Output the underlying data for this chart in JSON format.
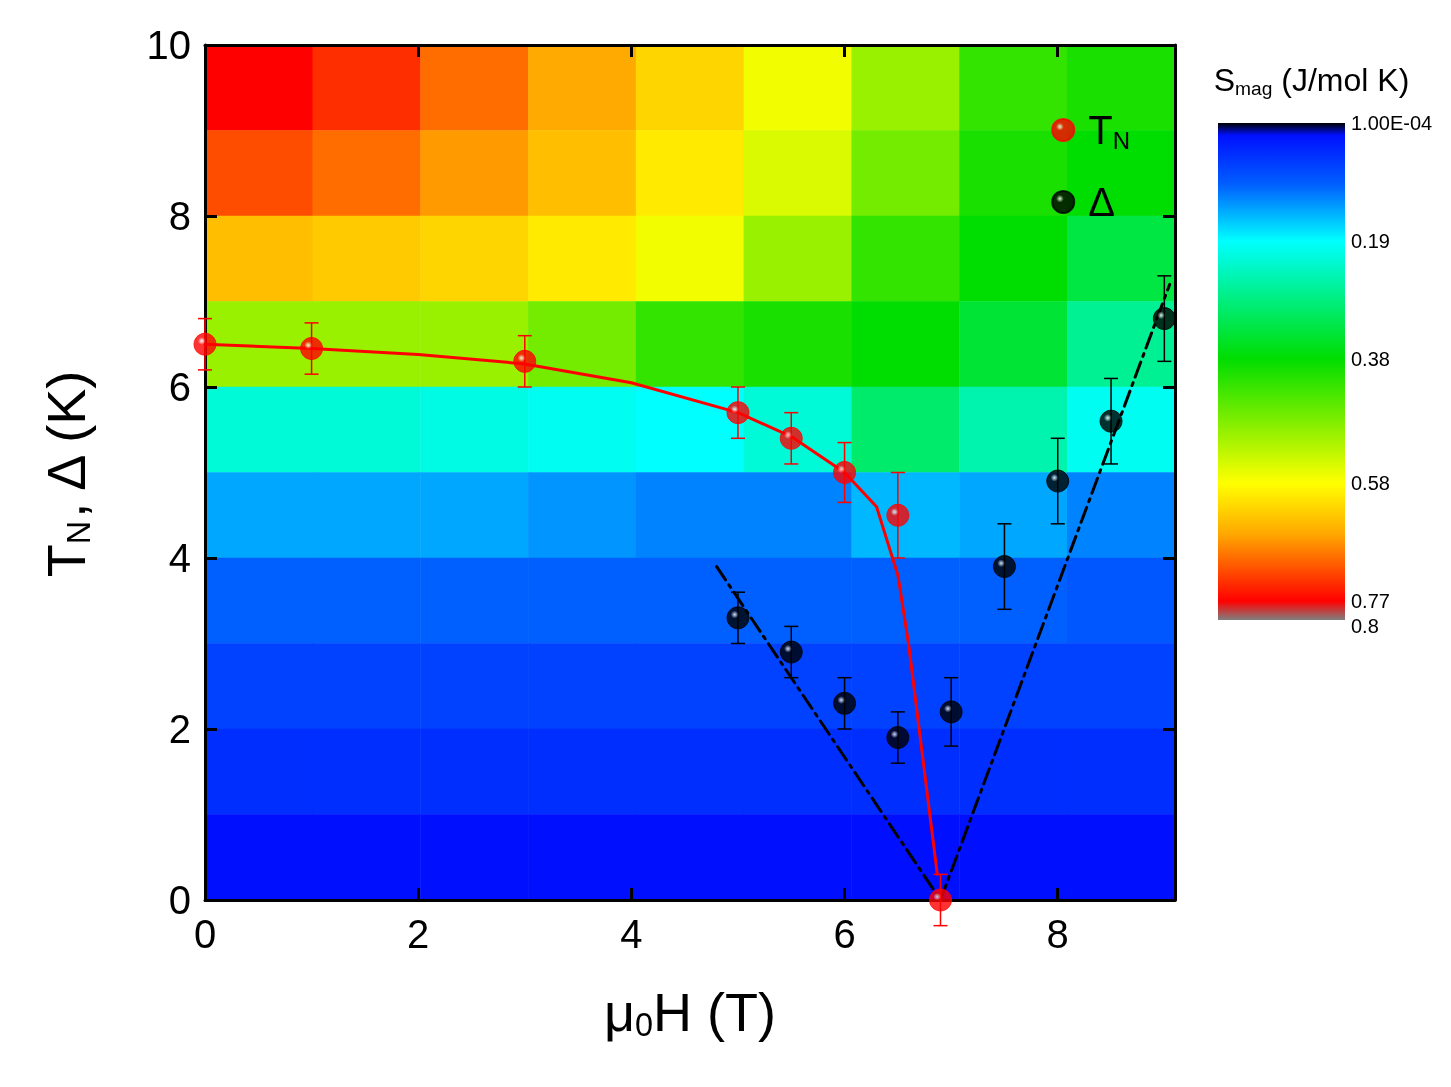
{
  "chart_data": [
    {
      "type": "heatmap",
      "categories": [
        null,
        null,
        null,
        null,
        null,
        null,
        null,
        null,
        null
      ],
      "y_categories": [
        null,
        null,
        null,
        null,
        null,
        null,
        null,
        null,
        null,
        null
      ],
      "clabel": "S$_{mag}$ (J/mol K)",
      "clim": [
        0.0001,
        0.8
      ],
      "cticks": [
        {
          "value": 0.0001,
          "label": "1.00E-04"
        },
        0.19,
        0.38,
        0.58,
        0.77,
        0.8
      ],
      "cells": [
        [
          0.77,
          0.74,
          0.7,
          0.66,
          0.62,
          0.57,
          0.5,
          0.42,
          0.4
        ],
        [
          0.72,
          0.7,
          0.67,
          0.64,
          0.6,
          0.55,
          0.47,
          0.4,
          0.38
        ],
        [
          0.64,
          0.63,
          0.62,
          0.6,
          0.57,
          0.5,
          0.42,
          0.38,
          0.33
        ],
        [
          0.5,
          0.5,
          0.5,
          0.47,
          0.42,
          0.4,
          0.38,
          0.34,
          0.27
        ],
        [
          0.22,
          0.22,
          0.21,
          0.2,
          0.19,
          0.22,
          0.3,
          0.25,
          0.2
        ],
        [
          0.14,
          0.14,
          0.14,
          0.13,
          0.12,
          0.12,
          0.15,
          0.14,
          0.12
        ],
        [
          0.1,
          0.1,
          0.1,
          0.1,
          0.1,
          0.1,
          0.1,
          0.1,
          0.09
        ],
        [
          0.07,
          0.07,
          0.07,
          0.07,
          0.07,
          0.07,
          0.07,
          0.07,
          0.07
        ],
        [
          0.05,
          0.05,
          0.05,
          0.05,
          0.05,
          0.05,
          0.05,
          0.05,
          0.05
        ],
        [
          0.02,
          0.02,
          0.02,
          0.02,
          0.02,
          0.02,
          0.02,
          0.02,
          0.02
        ]
      ]
    },
    {
      "type": "scatter",
      "xlabel": "μ$_{0}$H (T)",
      "ylabel": "T$_{N}$, Δ (K)",
      "xlim": [
        0,
        9.1
      ],
      "xticks": [
        0,
        2,
        4,
        6,
        8
      ],
      "ylim": [
        0,
        10
      ],
      "yticks": [
        0,
        2,
        4,
        6,
        8,
        10
      ],
      "grid": false,
      "legend": "top right",
      "marker": "circle",
      "series": [
        {
          "type": "line",
          "color": "#ff0000",
          "marker": "none",
          "line_style": "solid",
          "x": [
            0,
            1,
            2,
            3,
            4,
            5,
            5.5,
            6,
            6.3,
            6.5,
            6.6,
            6.7,
            6.8,
            6.87
          ],
          "values": [
            6.5,
            6.45,
            6.38,
            6.27,
            6.05,
            5.7,
            5.42,
            5.0,
            4.6,
            3.8,
            3.0,
            2.0,
            1.0,
            0.3
          ]
        },
        {
          "type": "line",
          "color": "#000000",
          "marker": "none",
          "line_style": "dashed",
          "x": [
            4.8,
            6.9
          ],
          "values": [
            3.9,
            0
          ]
        },
        {
          "type": "line",
          "color": "#000000",
          "marker": "none",
          "line_style": "dashed",
          "x": [
            6.9,
            9.05
          ],
          "values": [
            0,
            7.2
          ]
        },
        {
          "name": "T$_{N}$",
          "color": "#ff0000",
          "x": [
            0,
            1,
            3,
            5,
            5.5,
            6,
            6.5,
            6.9
          ],
          "values": [
            6.5,
            6.45,
            6.3,
            5.7,
            5.4,
            5.0,
            4.5,
            0
          ],
          "errors": [
            0.3,
            0.3,
            0.3,
            0.3,
            0.3,
            0.35,
            0.5,
            0.3
          ]
        },
        {
          "name": "Δ",
          "color": "#000000",
          "x": [
            5,
            5.5,
            6,
            6.5,
            7,
            7.5,
            8,
            8.5,
            9
          ],
          "values": [
            3.3,
            2.9,
            2.3,
            1.9,
            2.2,
            3.9,
            4.9,
            5.6,
            6.8
          ],
          "errors": [
            0.3,
            0.3,
            0.3,
            0.3,
            0.4,
            0.5,
            0.5,
            0.5,
            0.5
          ]
        }
      ]
    }
  ]
}
